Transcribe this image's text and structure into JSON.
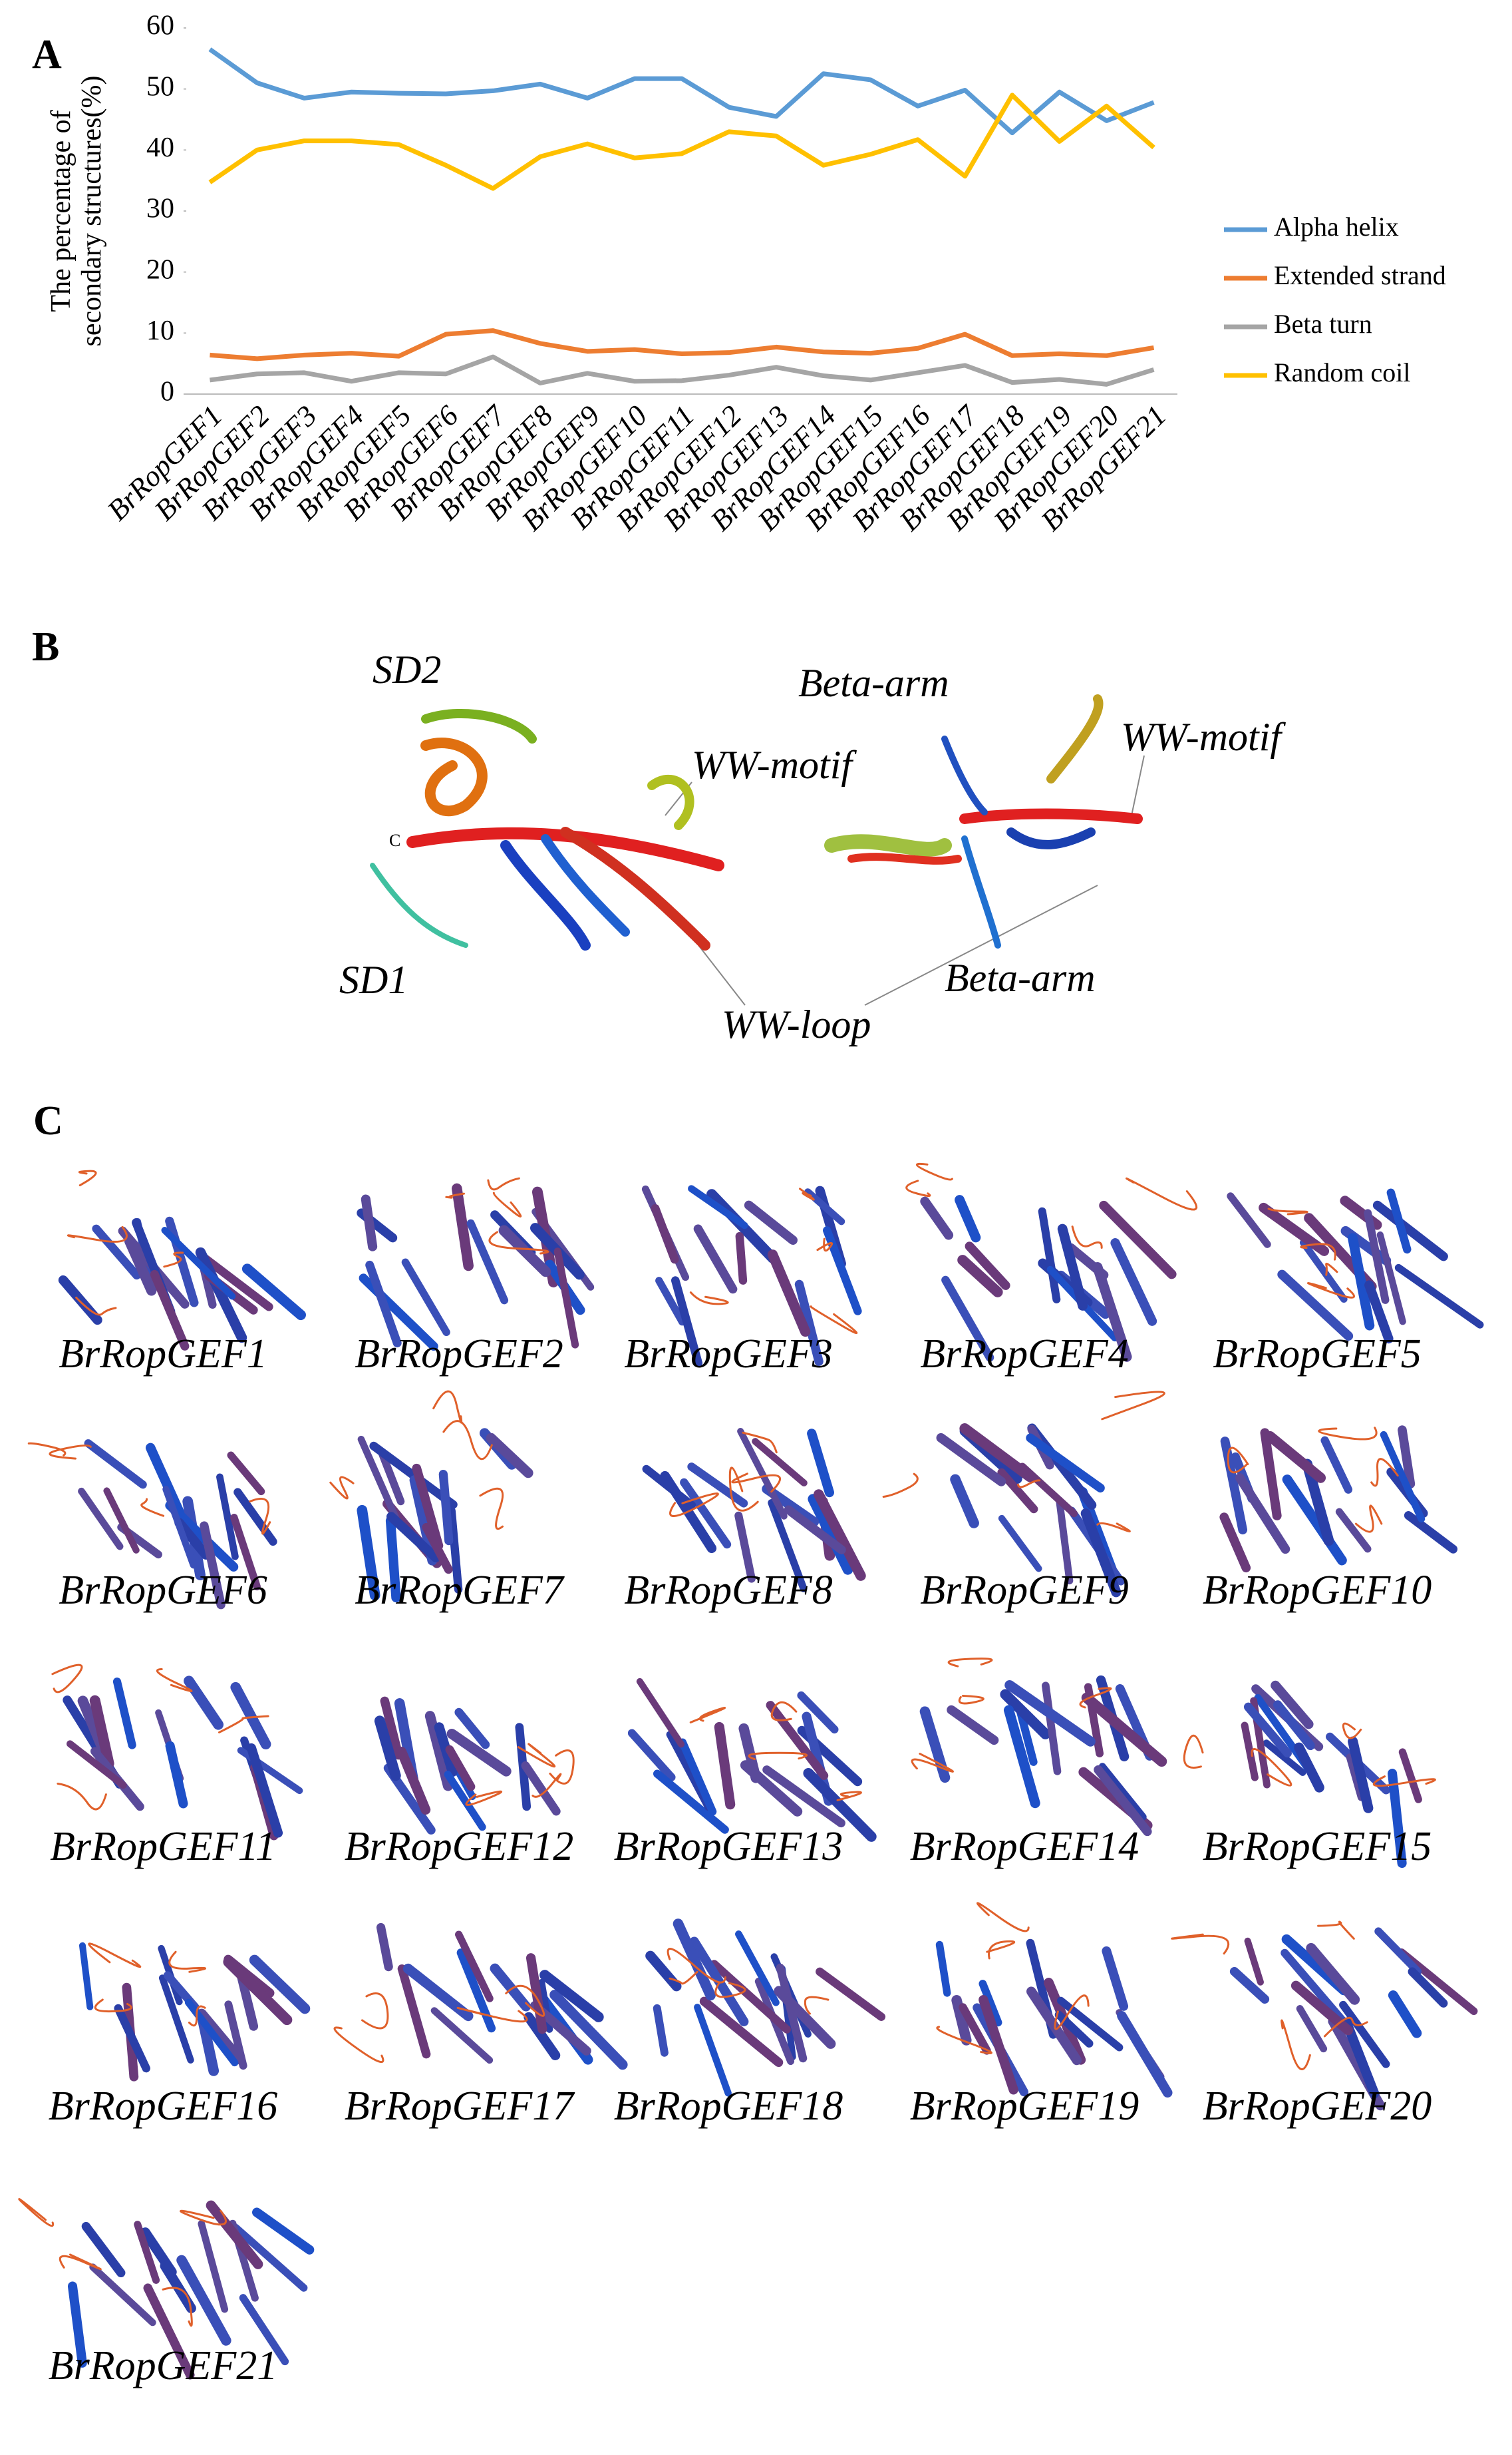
{
  "chart_data": {
    "type": "line",
    "panel_label": "A",
    "ylabel": [
      "The percentage of",
      "secondary structures(%)"
    ],
    "categories": [
      "BrRopGEF1",
      "BrRopGEF2",
      "BrRopGEF3",
      "BrRopGEF4",
      "BrRopGEF5",
      "BrRopGEF6",
      "BrRopGEF7",
      "BrRopGEF8",
      "BrRopGEF9",
      "BrRopGEF10",
      "BrRopGEF11",
      "BrRopGEF12",
      "BrRopGEF13",
      "BrRopGEF14",
      "BrRopGEF15",
      "BrRopGEF16",
      "BrRopGEF17",
      "BrRopGEF18",
      "BrRopGEF19",
      "BrRopGEF20",
      "BrRopGEF21"
    ],
    "series": [
      {
        "name": "Alpha helix",
        "color": "#5b9bd5",
        "values": [
          56.5,
          51,
          48.5,
          49.5,
          49.3,
          49.2,
          49.7,
          50.8,
          48.5,
          51.7,
          51.7,
          47,
          45.5,
          52.5,
          51.5,
          47.2,
          49.8,
          42.8,
          49.5,
          44.8,
          47.8
        ]
      },
      {
        "name": "Extended strand",
        "color": "#ed7d31",
        "values": [
          6.4,
          5.8,
          6.4,
          6.7,
          6.2,
          9.8,
          10.4,
          8.3,
          7,
          7.3,
          6.6,
          6.8,
          7.7,
          6.9,
          6.7,
          7.5,
          9.8,
          6.3,
          6.6,
          6.3,
          7.6
        ]
      },
      {
        "name": "Beta turn",
        "color": "#a5a5a5",
        "values": [
          2.3,
          3.3,
          3.5,
          2.1,
          3.5,
          3.3,
          6.1,
          1.8,
          3.4,
          2.1,
          2.2,
          3.1,
          4.4,
          3,
          2.3,
          3.5,
          4.7,
          1.9,
          2.4,
          1.6,
          4
        ]
      },
      {
        "name": "Random coil",
        "color": "#ffc000",
        "values": [
          34.7,
          40,
          41.5,
          41.5,
          40.9,
          37.5,
          33.7,
          38.9,
          41,
          38.7,
          39.4,
          43,
          42.3,
          37.5,
          39.3,
          41.7,
          35.7,
          49,
          41.4,
          47.2,
          40.4
        ]
      }
    ],
    "ylim": [
      0,
      60
    ],
    "yticks": [
      0,
      10,
      20,
      30,
      40,
      50,
      60
    ],
    "legend": "right"
  },
  "panel_b": {
    "label": "B",
    "annotations": [
      "SD2",
      "WW-motif",
      "C",
      "SD1",
      "WW-loop",
      "Beta-arm",
      "WW-motif",
      "Beta-arm"
    ]
  },
  "panel_c": {
    "label": "C",
    "structures": [
      "BrRopGEF1",
      "BrRopGEF2",
      "BrRopGEF3",
      "BrRopGEF4",
      "BrRopGEF5",
      "BrRopGEF6",
      "BrRopGEF7",
      "BrRopGEF8",
      "BrRopGEF9",
      "BrRopGEF10",
      "BrRopGEF11",
      "BrRopGEF12",
      "BrRopGEF13",
      "BrRopGEF14",
      "BrRopGEF15",
      "BrRopGEF16",
      "BrRopGEF17",
      "BrRopGEF18",
      "BrRopGEF19",
      "BrRopGEF20",
      "BrRopGEF21"
    ]
  }
}
